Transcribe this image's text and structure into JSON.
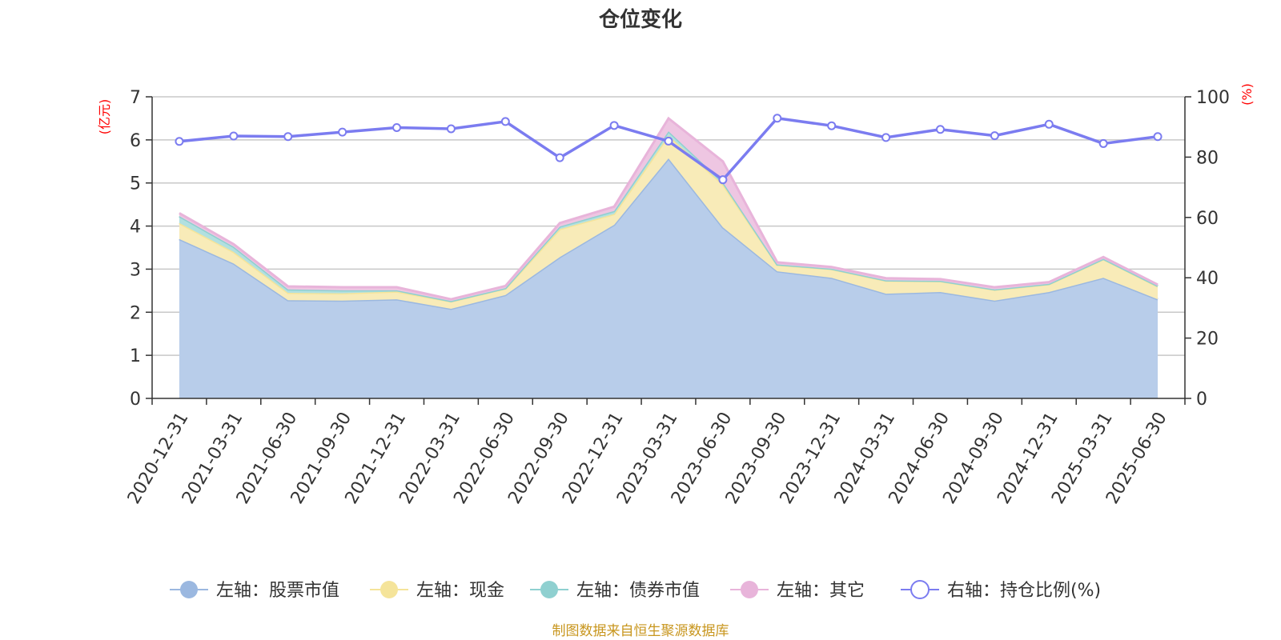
{
  "title": "仓位变化",
  "source": "制图数据来自恒生聚源数据库",
  "left_unit": "(亿元)",
  "right_unit": "(%)",
  "chart_data": {
    "type": "area",
    "categories": [
      "2020-12-31",
      "2021-03-31",
      "2021-06-30",
      "2021-09-30",
      "2021-12-31",
      "2022-03-31",
      "2022-06-30",
      "2022-09-30",
      "2022-12-31",
      "2023-03-31",
      "2023-06-30",
      "2023-09-30",
      "2023-12-31",
      "2024-03-31",
      "2024-06-30",
      "2024-09-30",
      "2024-12-31",
      "2025-03-31",
      "2025-06-30"
    ],
    "left_axis": {
      "ylim": [
        0,
        7
      ],
      "ticks": [
        0,
        1,
        2,
        3,
        4,
        5,
        6,
        7
      ]
    },
    "right_axis": {
      "ylim": [
        0,
        100
      ],
      "ticks": [
        0,
        20,
        40,
        60,
        80,
        100
      ]
    },
    "grid": true,
    "legend_position": "bottom",
    "series": [
      {
        "name": "左轴：股票市值",
        "axis": "left",
        "stacked": true,
        "color": "#9bb8e0",
        "fill": "#b8cdea",
        "values": [
          3.7,
          3.13,
          2.28,
          2.27,
          2.3,
          2.08,
          2.4,
          3.28,
          4.03,
          5.57,
          3.97,
          2.95,
          2.8,
          2.43,
          2.47,
          2.27,
          2.47,
          2.8,
          2.3
        ]
      },
      {
        "name": "左轴：现金",
        "axis": "left",
        "stacked": true,
        "color": "#f5e49a",
        "fill": "#f8ebb8",
        "values": [
          0.37,
          0.27,
          0.17,
          0.17,
          0.18,
          0.17,
          0.15,
          0.65,
          0.25,
          0.53,
          1.0,
          0.15,
          0.2,
          0.3,
          0.25,
          0.25,
          0.18,
          0.43,
          0.3
        ]
      },
      {
        "name": "左轴：债券市值",
        "axis": "left",
        "stacked": true,
        "color": "#8fd0d0",
        "fill": "#b2e0e0",
        "values": [
          0.16,
          0.12,
          0.08,
          0.07,
          0.03,
          0.01,
          0.01,
          0.06,
          0.07,
          0.1,
          0.05,
          0.01,
          0.01,
          0.01,
          0.01,
          0.01,
          0.01,
          0.01,
          0.01
        ]
      },
      {
        "name": "左轴：其它",
        "axis": "left",
        "stacked": true,
        "color": "#e8b4da",
        "fill": "#eec6e2",
        "values": [
          0.07,
          0.06,
          0.07,
          0.07,
          0.07,
          0.04,
          0.05,
          0.08,
          0.1,
          0.3,
          0.48,
          0.05,
          0.04,
          0.05,
          0.04,
          0.05,
          0.04,
          0.04,
          0.03
        ]
      },
      {
        "name": "右轴：持仓比例(%)",
        "axis": "right",
        "type": "line",
        "color": "#7b7cf0",
        "values": [
          85.2,
          87.0,
          86.8,
          88.3,
          89.8,
          89.4,
          91.8,
          79.8,
          90.5,
          85.3,
          72.5,
          92.9,
          90.4,
          86.5,
          89.2,
          87.1,
          90.9,
          84.5,
          86.8
        ]
      }
    ]
  }
}
